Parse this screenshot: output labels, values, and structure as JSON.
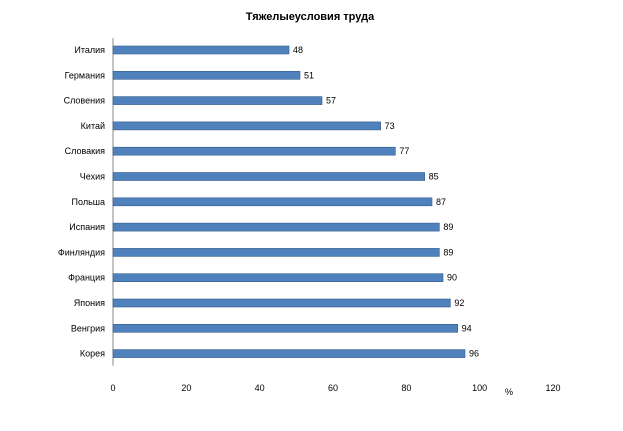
{
  "chart_data": {
    "type": "bar",
    "orientation": "horizontal",
    "title": "Тяжелыеусловия труда",
    "categories": [
      "Италия",
      "Германия",
      "Словения",
      "Китай",
      "Словакия",
      "Чехия",
      "Польша",
      "Испания",
      "Финляндия",
      "Франция",
      "Япония",
      "Венгрия",
      "Корея"
    ],
    "values": [
      48,
      51,
      57,
      73,
      77,
      85,
      87,
      89,
      89,
      90,
      92,
      94,
      96
    ],
    "x_unit_label": "%",
    "xlim": [
      0,
      120
    ],
    "x_ticks": [
      "0",
      "20",
      "40",
      "60",
      "80",
      "100",
      "120"
    ],
    "grid": false,
    "legend": "none",
    "bar_color": "#4f81bd",
    "bar_edge_color": "#385d8a"
  }
}
